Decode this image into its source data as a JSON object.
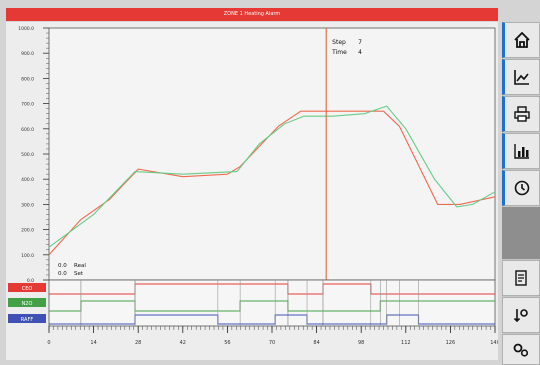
{
  "window": {
    "title": "ZONE 1 Heating Alarm"
  },
  "cursor": {
    "step_label": "Step",
    "step_value": "7",
    "time_label": "Time",
    "time_value": "4"
  },
  "readouts": [
    {
      "value": "0.0",
      "label": "Real"
    },
    {
      "value": "0.0",
      "label": "Set"
    }
  ],
  "channels": [
    {
      "name": "CEO",
      "color": "#e53935"
    },
    {
      "name": "N2O",
      "color": "#43a047"
    },
    {
      "name": "RAFF",
      "color": "#3f51b5"
    }
  ],
  "sidebar": {
    "buttons": [
      {
        "name": "home-icon"
      },
      {
        "name": "trend-chart-icon"
      },
      {
        "name": "printer-icon"
      },
      {
        "name": "bar-chart-icon"
      },
      {
        "name": "refresh-icon"
      },
      {
        "name": "report-icon"
      },
      {
        "name": "sort-settings-icon"
      },
      {
        "name": "settings-gears-icon"
      }
    ]
  },
  "chart_data": {
    "type": "line",
    "y_ticks": [
      "1000.0",
      "900.0",
      "800.0",
      "700.0",
      "600.0",
      "500.0",
      "400.0",
      "300.0",
      "200.0",
      "100.0",
      "0.0"
    ],
    "ylim": [
      0,
      1000
    ],
    "x_ticks": [
      "0",
      "14",
      "28",
      "42",
      "56",
      "70",
      "84",
      "98",
      "112",
      "126",
      "140"
    ],
    "xlim": [
      0,
      140
    ],
    "cursor_x": 87,
    "series": [
      {
        "color": "#f06a50",
        "points": [
          [
            0,
            100
          ],
          [
            10,
            240
          ],
          [
            19,
            320
          ],
          [
            28,
            440
          ],
          [
            42,
            410
          ],
          [
            56,
            420
          ],
          [
            60,
            450
          ],
          [
            72,
            610
          ],
          [
            79,
            670
          ],
          [
            96,
            670
          ],
          [
            105,
            670
          ],
          [
            110,
            610
          ],
          [
            122,
            300
          ],
          [
            129,
            300
          ],
          [
            140,
            330
          ]
        ]
      },
      {
        "color": "#66cc88",
        "points": [
          [
            0,
            130
          ],
          [
            14,
            260
          ],
          [
            27,
            430
          ],
          [
            42,
            420
          ],
          [
            59,
            430
          ],
          [
            66,
            540
          ],
          [
            74,
            620
          ],
          [
            80,
            650
          ],
          [
            89,
            650
          ],
          [
            99,
            660
          ],
          [
            106,
            690
          ],
          [
            112,
            600
          ],
          [
            121,
            400
          ],
          [
            128,
            290
          ],
          [
            133,
            300
          ],
          [
            140,
            350
          ]
        ]
      }
    ],
    "digital": [
      {
        "channel": "CEO",
        "color": "#e53935",
        "segments": [
          [
            0,
            10,
            0
          ],
          [
            10,
            27,
            0
          ],
          [
            27,
            75,
            1
          ],
          [
            75,
            86,
            0
          ],
          [
            86,
            101,
            1
          ],
          [
            101,
            110,
            0
          ],
          [
            110,
            140,
            0
          ]
        ]
      },
      {
        "channel": "N2O",
        "color": "#43a047",
        "segments": [
          [
            0,
            10,
            0
          ],
          [
            10,
            27,
            1
          ],
          [
            27,
            60,
            0
          ],
          [
            60,
            75,
            1
          ],
          [
            75,
            86,
            0
          ],
          [
            86,
            104,
            0
          ],
          [
            104,
            140,
            1
          ]
        ]
      },
      {
        "channel": "RAFF",
        "color": "#3f51b5",
        "segments": [
          [
            0,
            27,
            0
          ],
          [
            27,
            53,
            1
          ],
          [
            53,
            71,
            0
          ],
          [
            71,
            81,
            1
          ],
          [
            81,
            106,
            0
          ],
          [
            106,
            116,
            1
          ],
          [
            116,
            140,
            0
          ]
        ]
      }
    ]
  }
}
